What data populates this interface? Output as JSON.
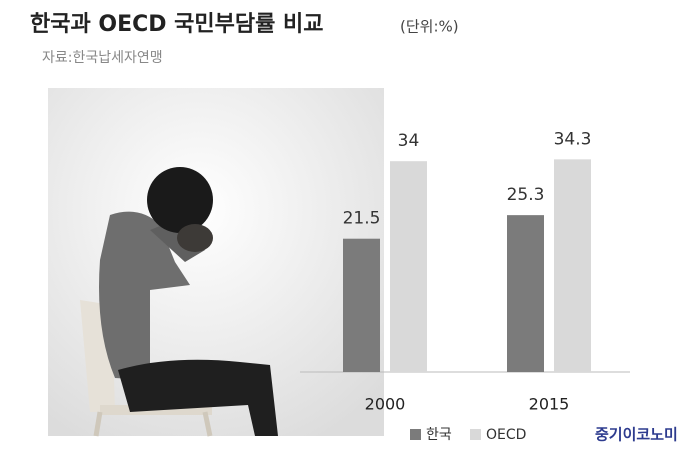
{
  "chart_data": {
    "type": "bar",
    "title": "한국과 OECD 국민부담률 비교",
    "subtitle": "(단위:%)",
    "source": "자료:한국납세자연맹",
    "credit": "중기이코노미",
    "categories": [
      "2000",
      "2015"
    ],
    "series": [
      {
        "name": "한국",
        "color": "#7b7b7b",
        "values": [
          21.5,
          25.3
        ]
      },
      {
        "name": "OECD",
        "color": "#d9d9d9",
        "values": [
          34,
          34.3
        ]
      }
    ]
  }
}
